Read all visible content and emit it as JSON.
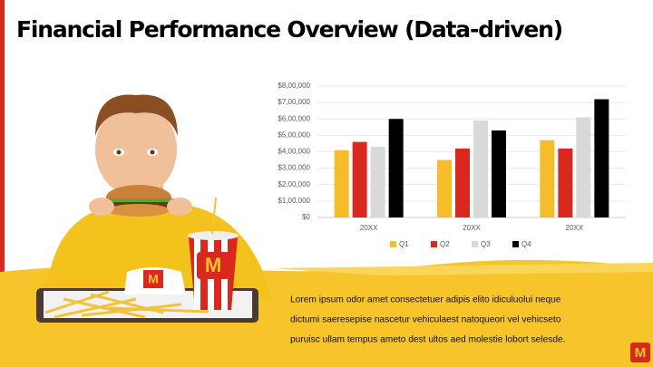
{
  "chart_data": {
    "type": "bar",
    "title": "Financial Performance Overview (Data-driven)",
    "categories": [
      "20XX",
      "20XX",
      "20XX"
    ],
    "series": [
      {
        "name": "Q1",
        "color": "#f5bd2a",
        "values": [
          410000,
          350000,
          470000
        ]
      },
      {
        "name": "Q2",
        "color": "#d9281e",
        "values": [
          460000,
          420000,
          420000
        ]
      },
      {
        "name": "Q3",
        "color": "#d9d9d9",
        "values": [
          430000,
          590000,
          610000
        ]
      },
      {
        "name": "Q4",
        "color": "#000000",
        "values": [
          600000,
          530000,
          720000
        ]
      }
    ],
    "ylim": [
      0,
      800000
    ],
    "yticks": [
      {
        "value": 0,
        "label": "$0"
      },
      {
        "value": 100000,
        "label": "$1,00,000"
      },
      {
        "value": 200000,
        "label": "$2,00,000"
      },
      {
        "value": 300000,
        "label": "$3,00,000"
      },
      {
        "value": 400000,
        "label": "$4,00,000"
      },
      {
        "value": 500000,
        "label": "$5,00,000"
      },
      {
        "value": 600000,
        "label": "$6,00,000"
      },
      {
        "value": 700000,
        "label": "$7,00,000"
      },
      {
        "value": 800000,
        "label": "$8,00,000"
      }
    ],
    "grid": true,
    "legend": "bottom"
  },
  "body_lines": [
    "Lorem ipsum odor amet consectetuer adipis elito idiculuolui neque",
    "dictumi saeresepise nascetur vehiculaest natoqueori vel vehicseto",
    "puruisc ullam tempus ameto dest ultos aed molestie lobort selesde."
  ]
}
